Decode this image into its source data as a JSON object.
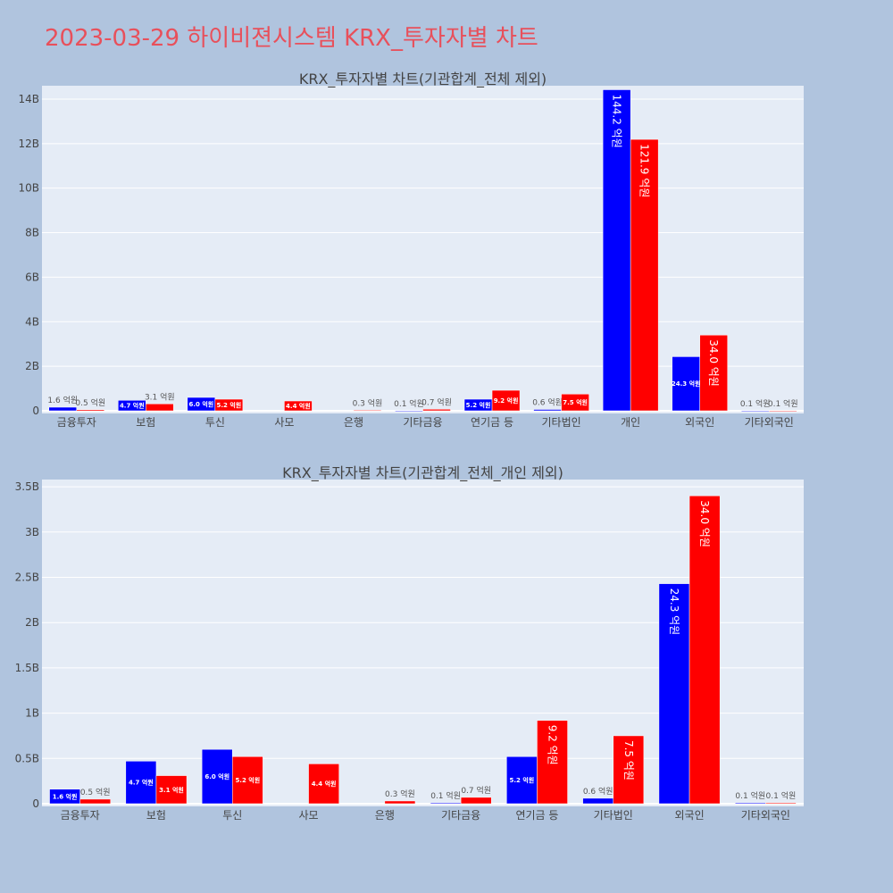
{
  "page_title": "2023-03-29 하이비젼시스템 KRX_투자자별 차트",
  "colors": {
    "buy": "#0000ff",
    "sell": "#ff0000",
    "plot_bg": "#e5ecf6",
    "page_bg": "#b0c4de",
    "title": "#e8505b"
  },
  "chart_data": [
    {
      "type": "bar",
      "title": "KRX_투자자별 차트(기관합계_전체 제외)",
      "categories": [
        "금융투자",
        "보험",
        "투신",
        "사모",
        "은행",
        "기타금융",
        "연기금 등",
        "기타법인",
        "개인",
        "외국인",
        "기타외국인"
      ],
      "series": [
        {
          "color": "#0000ff",
          "values": [
            0.16,
            0.47,
            0.6,
            0,
            0,
            0.01,
            0.52,
            0.06,
            14.42,
            2.43,
            0.01
          ],
          "labels": [
            "1.6 억원",
            "4.7 억원",
            "6.0 억원",
            "",
            "",
            "0.1 억원",
            "5.2 억원",
            "0.6 억원",
            "144.2 억원",
            "24.3 억원",
            "0.1 억원"
          ]
        },
        {
          "color": "#ff0000",
          "values": [
            0.05,
            0.31,
            0.52,
            0.44,
            0.03,
            0.07,
            0.92,
            0.75,
            12.19,
            3.4,
            0.01
          ],
          "labels": [
            "0.5 억원",
            "3.1 억원",
            "5.2 억원",
            "4.4 억원",
            "0.3 억원",
            "0.7 억원",
            "9.2 억원",
            "7.5 억원",
            "121.9 억원",
            "34.0 억원",
            "0.1 억원"
          ]
        }
      ],
      "ylim": [
        0,
        14.6
      ],
      "yticks": [
        0,
        2,
        4,
        6,
        8,
        10,
        12,
        14
      ],
      "ytick_labels": [
        "0",
        "2B",
        "4B",
        "6B",
        "8B",
        "10B",
        "12B",
        "14B"
      ],
      "grid": true
    },
    {
      "type": "bar",
      "title": "KRX_투자자별 차트(기관합계_전체_개인 제외)",
      "categories": [
        "금융투자",
        "보험",
        "투신",
        "사모",
        "은행",
        "기타금융",
        "연기금 등",
        "기타법인",
        "외국인",
        "기타외국인"
      ],
      "series": [
        {
          "color": "#0000ff",
          "values": [
            0.16,
            0.47,
            0.6,
            0,
            0,
            0.01,
            0.52,
            0.06,
            2.43,
            0.01
          ],
          "labels": [
            "1.6 억원",
            "4.7 억원",
            "6.0 억원",
            "",
            "",
            "0.1 억원",
            "5.2 억원",
            "0.6 억원",
            "24.3 억원",
            "0.1 억원"
          ]
        },
        {
          "color": "#ff0000",
          "values": [
            0.05,
            0.31,
            0.52,
            0.44,
            0.03,
            0.07,
            0.92,
            0.75,
            3.4,
            0.01
          ],
          "labels": [
            "0.5 억원",
            "3.1 억원",
            "5.2 억원",
            "4.4 억원",
            "0.3 억원",
            "0.7 억원",
            "9.2 억원",
            "7.5 억원",
            "34.0 억원",
            "0.1 억원"
          ]
        }
      ],
      "ylim": [
        0,
        3.58
      ],
      "yticks": [
        0,
        0.5,
        1,
        1.5,
        2,
        2.5,
        3,
        3.5
      ],
      "ytick_labels": [
        "0",
        "0.5B",
        "1B",
        "1.5B",
        "2B",
        "2.5B",
        "3B",
        "3.5B"
      ],
      "grid": true
    }
  ]
}
